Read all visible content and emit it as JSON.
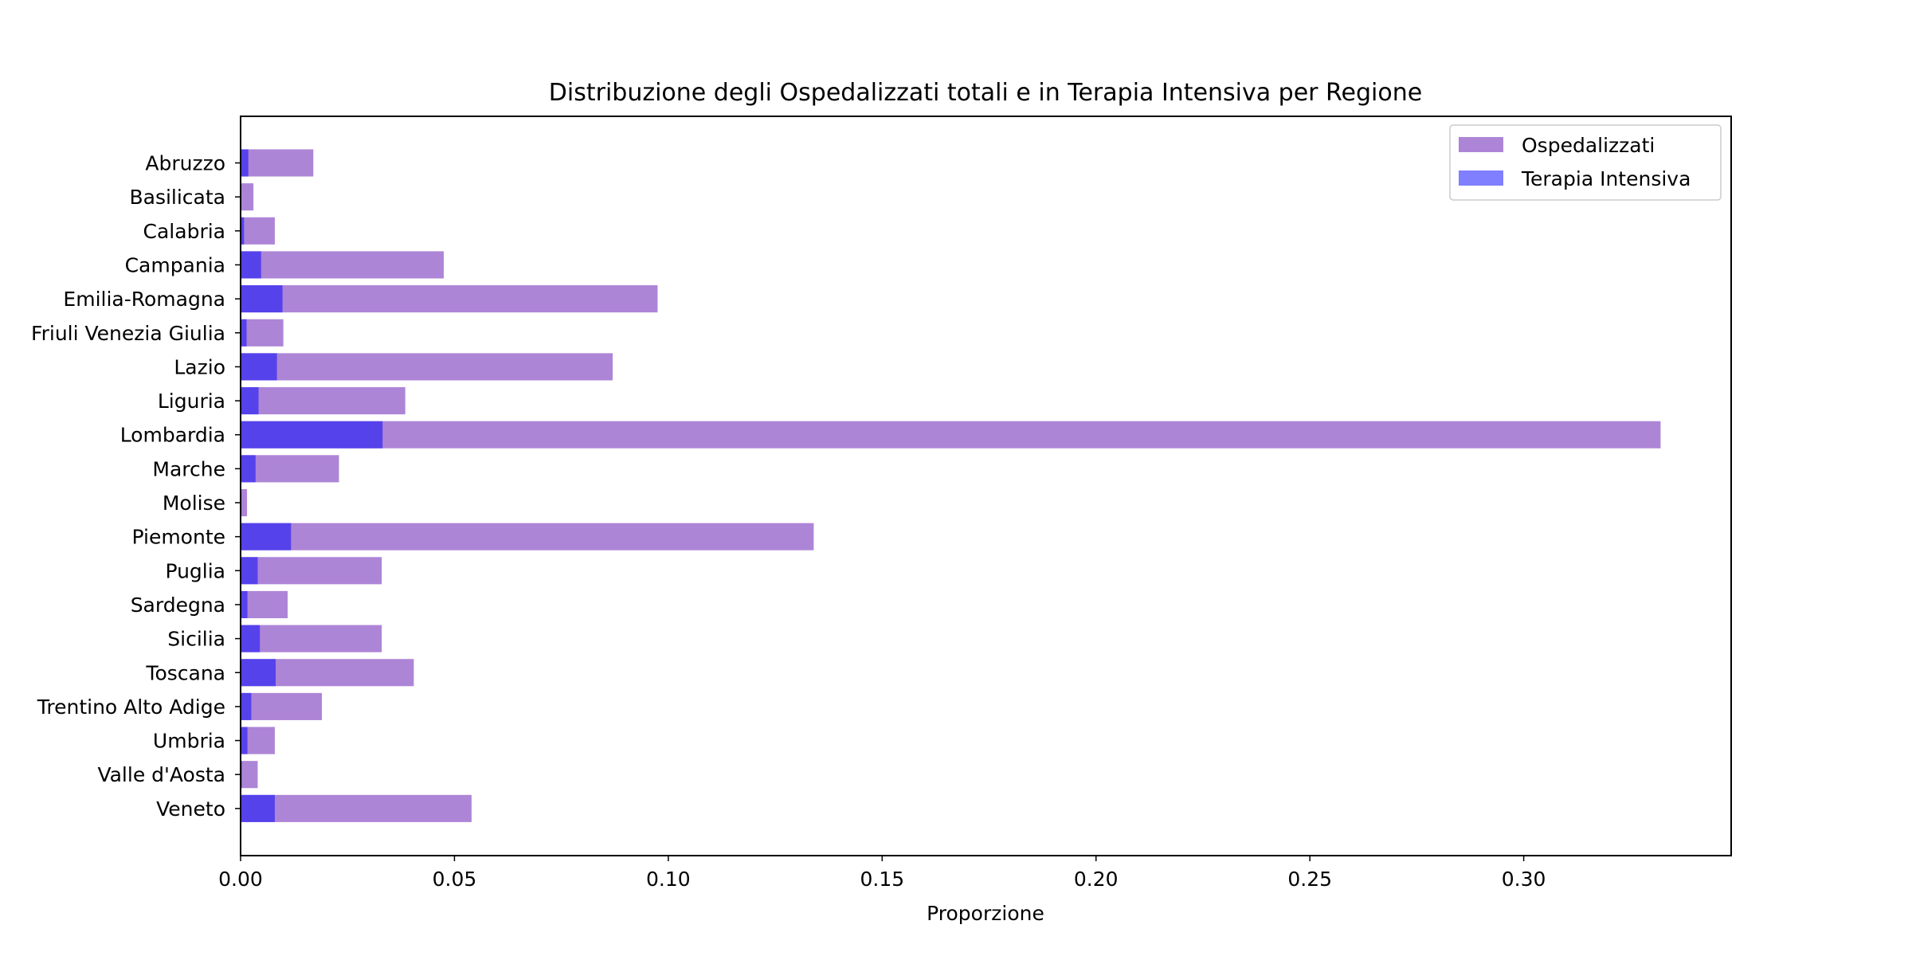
{
  "chart_data": {
    "type": "bar",
    "orientation": "horizontal",
    "title": "Distribuzione degli Ospedalizzati totali e in Terapia Intensiva per Regione",
    "xlabel": "Proporzione",
    "ylabel": "",
    "xlim": [
      0,
      0.3485
    ],
    "xticks": [
      0.0,
      0.05,
      0.1,
      0.15,
      0.2,
      0.25,
      0.3
    ],
    "xtick_labels": [
      "0.00",
      "0.05",
      "0.10",
      "0.15",
      "0.20",
      "0.25",
      "0.30"
    ],
    "grid": false,
    "legend_position": "top-right",
    "categories": [
      "Abruzzo",
      "Basilicata",
      "Calabria",
      "Campania",
      "Emilia-Romagna",
      "Friuli Venezia Giulia",
      "Lazio",
      "Liguria",
      "Lombardia",
      "Marche",
      "Molise",
      "Piemonte",
      "Puglia",
      "Sardegna",
      "Sicilia",
      "Toscana",
      "Trentino Alto Adige",
      "Umbria",
      "Valle d'Aosta",
      "Veneto"
    ],
    "series": [
      {
        "name": "Ospedalizzati",
        "color": "#9966cc",
        "opacity": 0.8,
        "values": [
          0.017,
          0.003,
          0.008,
          0.0475,
          0.0975,
          0.01,
          0.087,
          0.0385,
          0.332,
          0.023,
          0.0015,
          0.134,
          0.033,
          0.011,
          0.033,
          0.0405,
          0.019,
          0.008,
          0.004,
          0.054
        ]
      },
      {
        "name": "Terapia Intensiva",
        "color": "#0000ff",
        "opacity": 0.5,
        "values": [
          0.0018,
          0.0002,
          0.0008,
          0.0048,
          0.0098,
          0.0014,
          0.0085,
          0.0042,
          0.0332,
          0.0035,
          0.0002,
          0.0118,
          0.004,
          0.0016,
          0.0045,
          0.0082,
          0.0025,
          0.0016,
          0.0003,
          0.008
        ]
      }
    ]
  }
}
